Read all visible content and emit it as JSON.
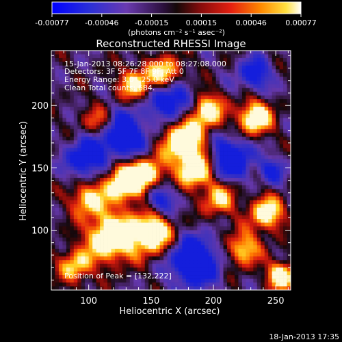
{
  "colorbar": {
    "tick_labels": [
      "-0.00077",
      "-0.00046",
      "-0.00015",
      "0.00015",
      "0.00046",
      "0.00077"
    ],
    "unit_label": "(photons cm⁻² s⁻¹ asec⁻²)"
  },
  "title": "Reconstructed RHESSI Image",
  "annotations": {
    "time_range": "15-Jan-2013 08:26:28.000 to 08:27:08.000",
    "detectors": "Detectors: 3F 5F 7F 8F 9F, Att 0",
    "energy_range": "Energy Range: 3.0 - 25.0 keV",
    "clean": "Clean    Total counts: 684.",
    "peak": "Position of Peak = [132,222]"
  },
  "axes": {
    "xlabel": "Heliocentric X (arcsec)",
    "ylabel": "Heliocentric Y (arcsec)",
    "x_ticks": [
      "100",
      "150",
      "200",
      "250"
    ],
    "y_ticks": [
      "100",
      "150",
      "200"
    ]
  },
  "footer": {
    "timestamp": "18-Jan-2013 17:35"
  },
  "colors": {
    "background": "#000000",
    "colormap": [
      "#0000ff",
      "#5a2ea6",
      "#1a0a2a",
      "#3a0a0a",
      "#c01010",
      "#ff6a00",
      "#ffd300",
      "#ffffff"
    ]
  }
}
